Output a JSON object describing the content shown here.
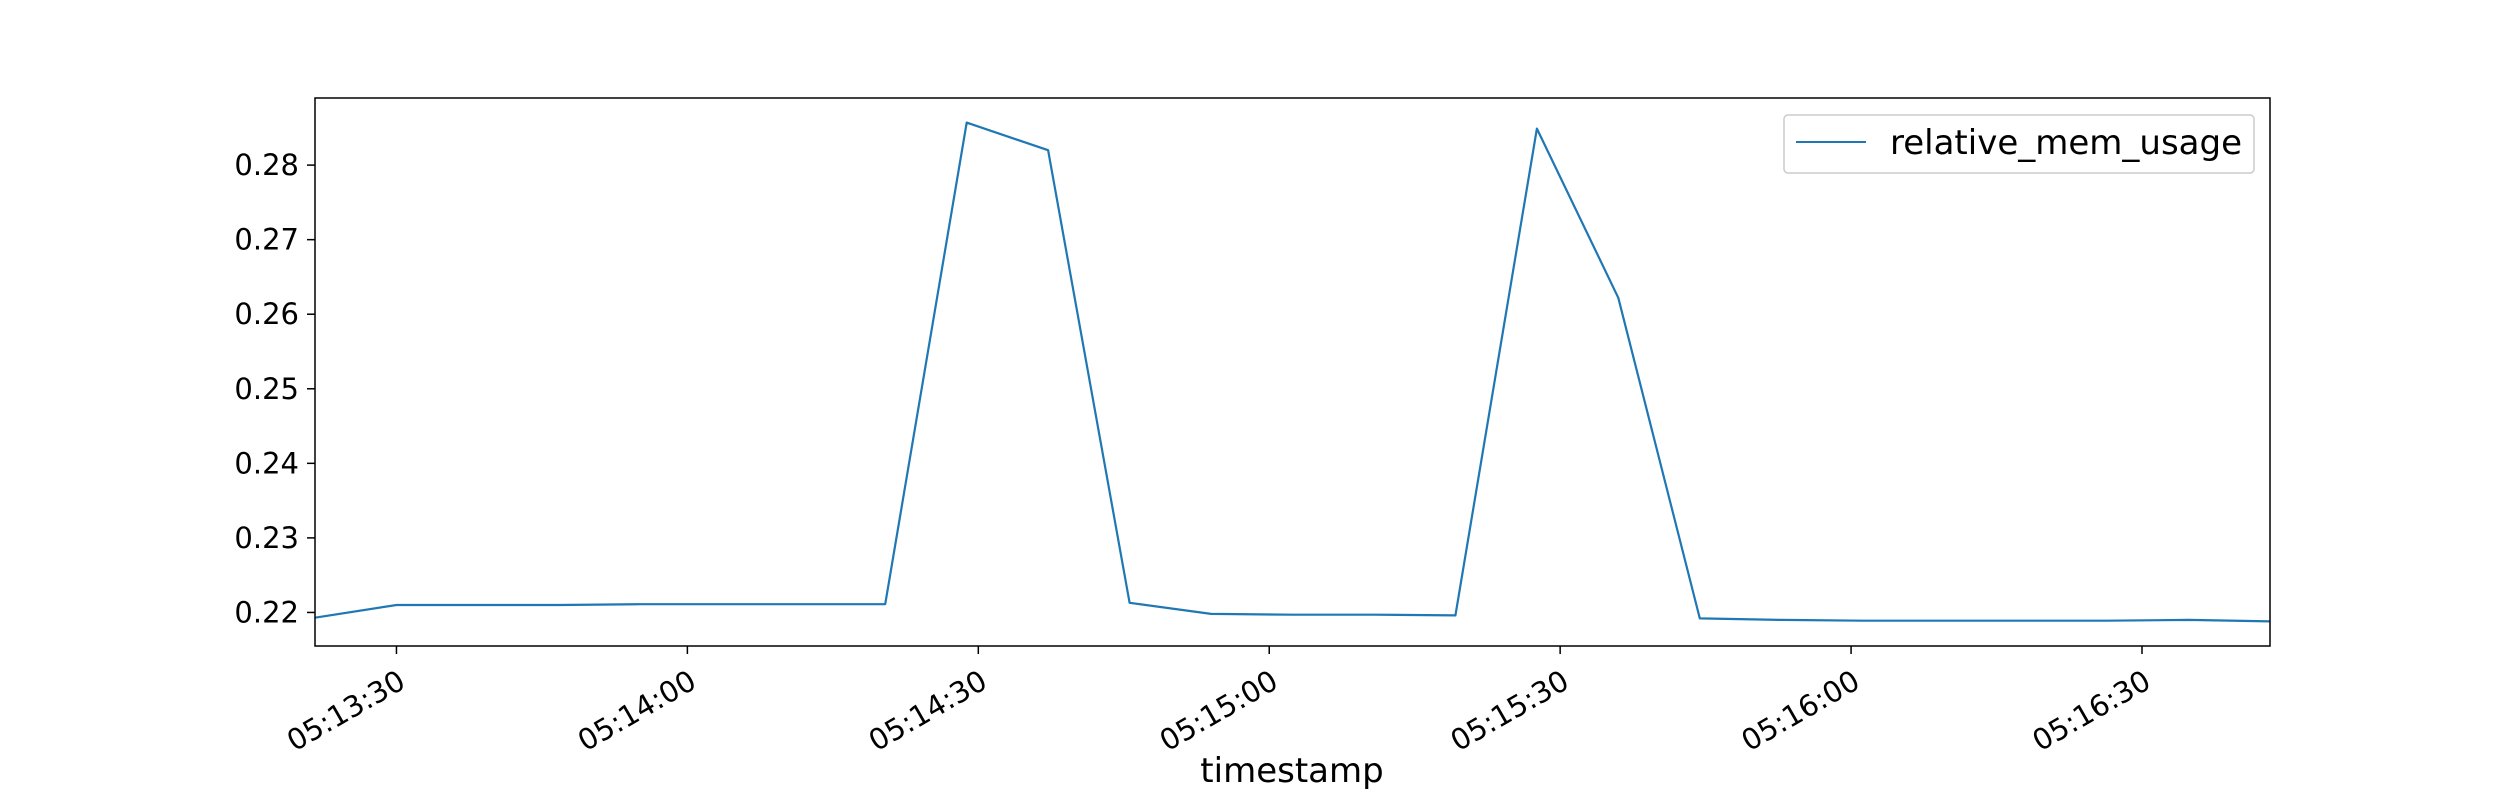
{
  "chart_data": {
    "type": "line",
    "xlabel": "timestamp",
    "ylabel": "",
    "grid": false,
    "legend_position": "upper right",
    "xlim": [
      "05:13:21.6",
      "05:16:43.2"
    ],
    "ylim": [
      0.2155,
      0.289
    ],
    "x_ticks": [
      "05:13:30",
      "05:14:00",
      "05:14:30",
      "05:15:00",
      "05:15:30",
      "05:16:00",
      "05:16:30"
    ],
    "y_ticks": [
      "0.22",
      "0.23",
      "0.24",
      "0.25",
      "0.26",
      "0.27",
      "0.28"
    ],
    "series": [
      {
        "name": "relative_mem_usage",
        "color": "#1f77b4",
        "x": [
          "05:13:21.6",
          "05:13:30",
          "05:13:38.4",
          "05:13:46.8",
          "05:13:55.2",
          "05:14:03.6",
          "05:14:12",
          "05:14:20.4",
          "05:14:28.8",
          "05:14:37.2",
          "05:14:45.6",
          "05:14:54",
          "05:15:02.4",
          "05:15:10.8",
          "05:15:19.2",
          "05:15:27.6",
          "05:15:36",
          "05:15:44.4",
          "05:15:52.8",
          "05:16:01.2",
          "05:16:09.6",
          "05:16:18",
          "05:16:26.4",
          "05:16:34.8",
          "05:16:43.2"
        ],
        "values": [
          0.2193,
          0.221,
          0.221,
          0.221,
          0.2211,
          0.2211,
          0.2211,
          0.2211,
          0.2857,
          0.282,
          0.2213,
          0.2198,
          0.2197,
          0.2197,
          0.2196,
          0.2849,
          0.2622,
          0.2192,
          0.219,
          0.2189,
          0.2189,
          0.2189,
          0.2189,
          0.219,
          0.2188
        ]
      }
    ]
  }
}
